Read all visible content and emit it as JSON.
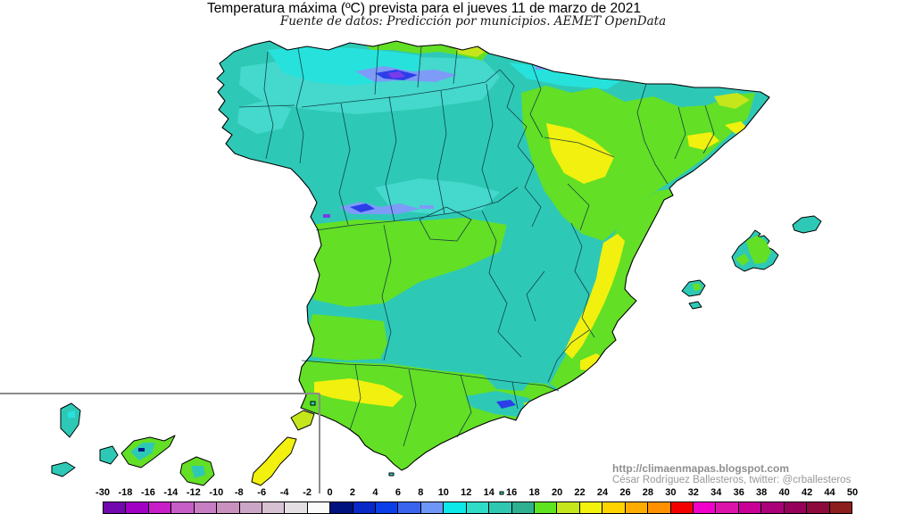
{
  "header": {
    "title": "Temperatura máxima (ºC) prevista para el jueves 11 de marzo de 2021",
    "subtitle": "Fuente de datos: Predicción por municipios. AEMET OpenData"
  },
  "attribution": {
    "url": "http://climaenmapas.blogspot.com",
    "author_line": "César Rodríguez Ballesteros, twitter: @crballesteros"
  },
  "colorbar": {
    "values": [
      "-30",
      "-18",
      "-16",
      "-14",
      "-12",
      "-10",
      "-8",
      "-6",
      "-4",
      "-2",
      "0",
      "2",
      "4",
      "6",
      "8",
      "10",
      "12",
      "14",
      "16",
      "18",
      "20",
      "22",
      "24",
      "26",
      "28",
      "30",
      "32",
      "34",
      "36",
      "38",
      "40",
      "42",
      "44",
      "50"
    ],
    "colors": [
      "#7109AE",
      "#A100C4",
      "#C71EC7",
      "#C75EC7",
      "#C77EC3",
      "#C991BE",
      "#CBA6C6",
      "#D6C2D2",
      "#E3DFE3",
      "#FBFBFB",
      "#00127E",
      "#0828C8",
      "#0A3EE8",
      "#3A64EE",
      "#6E96F6",
      "#0DE8E8",
      "#2EDCC8",
      "#2EC8B0",
      "#2EB091",
      "#5FE320",
      "#C6E61C",
      "#F2F20A",
      "#FFD300",
      "#FFAC00",
      "#FF9100",
      "#F50000",
      "#F000C8",
      "#DC14AA",
      "#C80096",
      "#AA0078",
      "#94005A",
      "#8C0A3C",
      "#8C1E1E"
    ]
  },
  "map": {
    "features": [
      "iberian-peninsula",
      "balearic-islands",
      "canary-islands-inset"
    ],
    "palette": {
      "teal": "#2EC9B6",
      "teal_light": "#45D8CC",
      "cyan": "#27E2DC",
      "green": "#63DF25",
      "yellow_green": "#C6E61C",
      "yellow": "#F2F00E",
      "periwinkle": "#7E9BF8",
      "blue": "#2B3FE8",
      "violet": "#7A3BE8",
      "navy": "#001A86",
      "coast": "#000000",
      "province_line": "#0D3440",
      "inset_border": "#8C8C8C"
    }
  }
}
